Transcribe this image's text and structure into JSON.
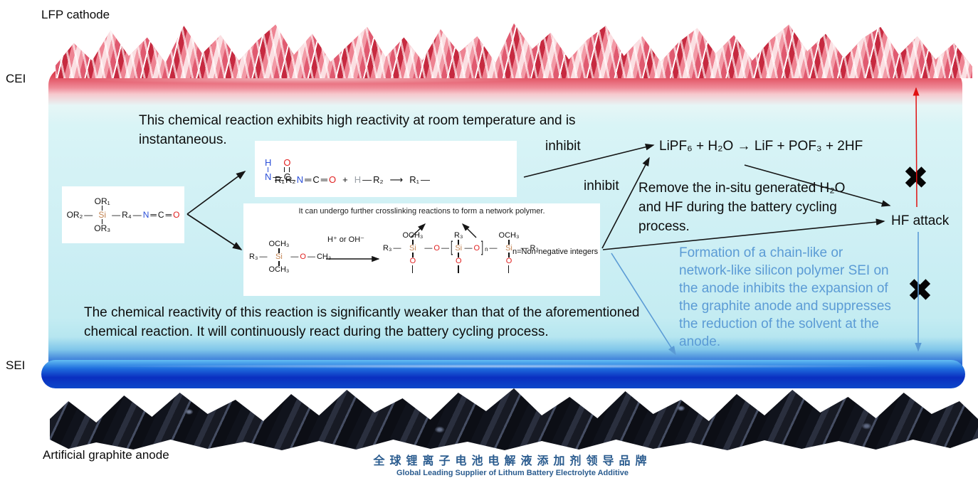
{
  "labels": {
    "lfp": "LFP cathode",
    "cei": "CEI",
    "sei": "SEI",
    "anode": "Artificial graphite anode",
    "hf_attack": "HF attack",
    "inhibit1": "inhibit",
    "inhibit2": "inhibit",
    "cross": "✖"
  },
  "paragraphs": {
    "reaction1_note": "This chemical reaction exhibits high reactivity at room temperature and is instantaneous.",
    "hydrolysis_eq": "LiPF₆ + H₂O → LiF + POF₃ + 2HF",
    "remove_note": "Remove the in-situ generated H₂O and HF during the battery cycling process.",
    "sei_note": "Formation of a chain-like or network-like silicon polymer SEI on the anode inhibits the expansion of the graphite anode and suppresses the reduction of the solvent at the anode.",
    "reaction2_note": "The chemical reactivity of this reaction is significantly weaker than that of the aforementioned chemical reaction. It will continuously react during the battery cycling process."
  },
  "footer": {
    "cn": "全球锂离子电池电解液添加剂领导品牌",
    "en": "Global Leading Supplier of Lithum Battery Electrolyte Additive"
  },
  "colors": {
    "accent_blue": "#5b9bd5",
    "cei_red": "#cf2433",
    "sei_blue": "#0a2fc0",
    "si_tan": "#c38452",
    "n_blue": "#2b4fd8",
    "o_red": "#e02020",
    "footer_blue": "#2b5c8f"
  },
  "structures": {
    "silane": {
      "pre": [
        {
          "t": "OR₂"
        },
        {
          "t": "—"
        }
      ],
      "top": "OR₁",
      "si": "Si",
      "bottom": "OR₃",
      "post": [
        {
          "t": "—"
        },
        {
          "t": "R₄"
        },
        {
          "t": "—"
        },
        {
          "t": "N",
          "c": "n"
        },
        {
          "t": "═"
        },
        {
          "t": "C"
        },
        {
          "t": "═"
        },
        {
          "t": "O",
          "c": "o"
        }
      ]
    },
    "reaction1": {
      "pre": [
        {
          "t": "R₁"
        },
        {
          "t": "—"
        },
        {
          "t": "N",
          "c": "n"
        },
        {
          "t": "═"
        },
        {
          "t": "C"
        },
        {
          "t": "═"
        },
        {
          "t": "O",
          "c": "o"
        },
        {
          "t": "+",
          "c": "pad"
        },
        {
          "t": "H",
          "c": "h"
        },
        {
          "t": "—"
        },
        {
          "t": "R₂"
        },
        {
          "t": "⟶",
          "c": "pad"
        },
        {
          "t": "R₁"
        },
        {
          "t": "—"
        }
      ],
      "h": "H",
      "n": "N",
      "o": "O",
      "c": "C",
      "post": [
        {
          "t": "—"
        },
        {
          "t": "R₂"
        }
      ]
    },
    "reaction2": {
      "caption": "It can undergo further crosslinking reactions to form a network polymer.",
      "condition": "H⁺ or OH⁻",
      "note": "n=Non-negative integers",
      "left_pre": [
        {
          "t": "R₃"
        },
        {
          "t": "—"
        }
      ],
      "left_top": "OCH₃",
      "left_mid": "Si",
      "left_bottom": "OCH₃",
      "left_post": [
        {
          "t": "—"
        },
        {
          "t": "O",
          "c": "o"
        },
        {
          "t": "—"
        },
        {
          "t": "CH₃"
        }
      ],
      "och3": "OCH₃",
      "r3": "R₃",
      "si": "Si",
      "o": "O",
      "p1": [
        {
          "t": "R₃"
        },
        {
          "t": "—"
        }
      ],
      "p2": [
        {
          "t": "—"
        },
        {
          "t": "O",
          "c": "o"
        },
        {
          "t": "—"
        },
        {
          "t": "[",
          "c": "br"
        }
      ],
      "p3": [
        {
          "t": "—"
        },
        {
          "t": "O",
          "c": "o"
        },
        {
          "t": "]",
          "c": "br"
        },
        {
          "t": "n",
          "c": "sub"
        },
        {
          "t": "—"
        }
      ],
      "p4": [
        {
          "t": "—"
        },
        {
          "t": "R₃"
        }
      ]
    }
  }
}
